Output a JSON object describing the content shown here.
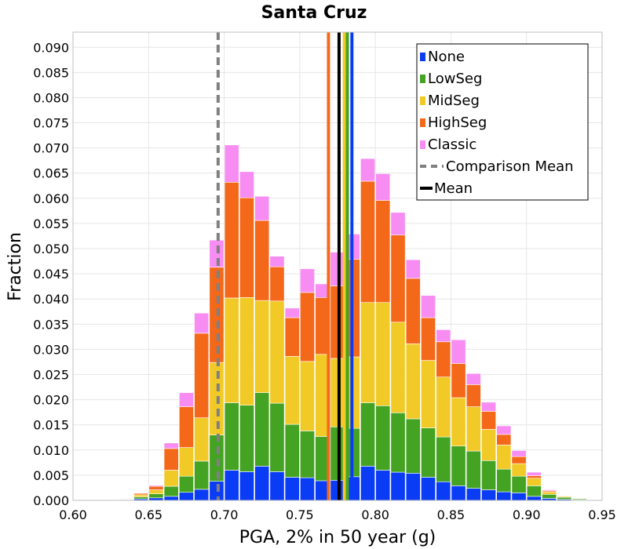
{
  "chart_data": {
    "type": "bar",
    "stacked": true,
    "title": "Santa Cruz",
    "xlabel": "PGA, 2% in 50 year (g)",
    "ylabel": "Fraction",
    "xlim": [
      0.6,
      0.95
    ],
    "ylim": [
      0,
      0.093
    ],
    "x_ticks": [
      "0.60",
      "0.65",
      "0.70",
      "0.75",
      "0.80",
      "0.85",
      "0.90",
      "0.95"
    ],
    "y_ticks": [
      "0.000",
      "0.005",
      "0.010",
      "0.015",
      "0.020",
      "0.025",
      "0.030",
      "0.035",
      "0.040",
      "0.045",
      "0.050",
      "0.055",
      "0.060",
      "0.065",
      "0.070",
      "0.075",
      "0.080",
      "0.085",
      "0.090"
    ],
    "grid": true,
    "legend_position": "top-right",
    "bin_width": 0.01,
    "x": [
      0.635,
      0.645,
      0.655,
      0.665,
      0.675,
      0.685,
      0.695,
      0.705,
      0.715,
      0.725,
      0.735,
      0.745,
      0.755,
      0.765,
      0.775,
      0.785,
      0.795,
      0.805,
      0.815,
      0.825,
      0.835,
      0.845,
      0.855,
      0.865,
      0.875,
      0.885,
      0.895,
      0.905,
      0.915,
      0.925,
      0.935
    ],
    "series": [
      {
        "name": "None",
        "color": "#0a3cf5",
        "values": [
          0.0001,
          0.0003,
          0.0005,
          0.0008,
          0.0016,
          0.0022,
          0.0038,
          0.006,
          0.0057,
          0.0068,
          0.0057,
          0.0046,
          0.0045,
          0.0039,
          0.004,
          0.0047,
          0.0068,
          0.006,
          0.0056,
          0.0054,
          0.0046,
          0.0037,
          0.0029,
          0.0024,
          0.0021,
          0.0017,
          0.0015,
          0.0008,
          0.0004,
          0.0002,
          0.0001
        ]
      },
      {
        "name": "LowSeg",
        "color": "#45a323",
        "values": [
          0.0001,
          0.0004,
          0.0008,
          0.002,
          0.0032,
          0.0056,
          0.0092,
          0.0134,
          0.0132,
          0.0146,
          0.0136,
          0.0105,
          0.0093,
          0.0088,
          0.0106,
          0.0096,
          0.0126,
          0.0128,
          0.0118,
          0.0108,
          0.0098,
          0.0089,
          0.0079,
          0.0074,
          0.0058,
          0.0045,
          0.0033,
          0.0021,
          0.0008,
          0.0004,
          0.0002
        ]
      },
      {
        "name": "MidSeg",
        "color": "#f2ca27",
        "values": [
          0.0001,
          0.0004,
          0.0008,
          0.0032,
          0.0057,
          0.0086,
          0.0144,
          0.0208,
          0.0214,
          0.0183,
          0.0203,
          0.0135,
          0.0138,
          0.0163,
          0.0136,
          0.0142,
          0.0199,
          0.0205,
          0.018,
          0.0149,
          0.0134,
          0.0119,
          0.0096,
          0.0088,
          0.0062,
          0.0048,
          0.0025,
          0.0015,
          0.0005,
          0.0002,
          0.0001
        ]
      },
      {
        "name": "HighSeg",
        "color": "#f4681a",
        "values": [
          0.0001,
          0.0003,
          0.0007,
          0.0043,
          0.0081,
          0.0168,
          0.0189,
          0.023,
          0.0198,
          0.0159,
          0.0068,
          0.0077,
          0.0137,
          0.0113,
          0.0144,
          0.0194,
          0.0241,
          0.0203,
          0.0173,
          0.013,
          0.0085,
          0.007,
          0.0068,
          0.0044,
          0.0036,
          0.0021,
          0.0014,
          0.0005,
          0.0002,
          0.0001,
          0.0001
        ]
      },
      {
        "name": "Classic",
        "color": "#f78df2",
        "values": [
          0.0001,
          0.0001,
          0.0002,
          0.0011,
          0.0028,
          0.004,
          0.0054,
          0.0074,
          0.0052,
          0.0048,
          0.0021,
          0.0019,
          0.0047,
          0.0027,
          0.0067,
          0.005,
          0.0045,
          0.0053,
          0.0045,
          0.0037,
          0.0044,
          0.0024,
          0.0047,
          0.0022,
          0.0018,
          0.0017,
          0.0012,
          0.0007,
          0.0002,
          0.0001,
          0.0001
        ]
      }
    ],
    "vertical_lines": [
      {
        "name": "Comparison Mean",
        "x": 0.696,
        "color": "#808080",
        "style": "dashed",
        "in_legend": true
      },
      {
        "name": "HighSeg mean",
        "x": 0.769,
        "color": "#f4681a",
        "style": "solid",
        "in_legend": false
      },
      {
        "name": "Mean",
        "x": 0.776,
        "color": "#000000",
        "style": "solid",
        "in_legend": true
      },
      {
        "name": "MidSeg mean",
        "x": 0.7795,
        "color": "#f2ca27",
        "style": "solid",
        "in_legend": false
      },
      {
        "name": "LowSeg mean",
        "x": 0.7815,
        "color": "#45a323",
        "style": "solid",
        "in_legend": false
      },
      {
        "name": "None mean",
        "x": 0.7845,
        "color": "#0a3cf5",
        "style": "solid",
        "in_legend": false
      }
    ],
    "legend": [
      {
        "label": "None",
        "color": "#0a3cf5",
        "kind": "swatch"
      },
      {
        "label": "LowSeg",
        "color": "#45a323",
        "kind": "swatch"
      },
      {
        "label": "MidSeg",
        "color": "#f2ca27",
        "kind": "swatch"
      },
      {
        "label": "HighSeg",
        "color": "#f4681a",
        "kind": "swatch"
      },
      {
        "label": "Classic",
        "color": "#f78df2",
        "kind": "swatch"
      },
      {
        "label": "Comparison Mean",
        "color": "#808080",
        "kind": "dashed-line"
      },
      {
        "label": "Mean",
        "color": "#000000",
        "kind": "line"
      }
    ]
  }
}
